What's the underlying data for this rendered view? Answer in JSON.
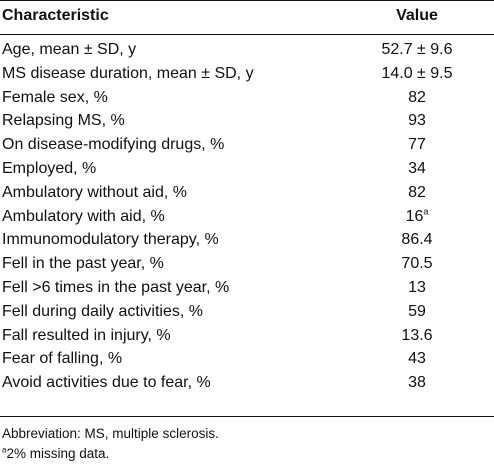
{
  "table": {
    "header": {
      "characteristic": "Characteristic",
      "value": "Value"
    },
    "rows": [
      {
        "label": "Age, mean ± SD, y",
        "value": "52.7 ± 9.6",
        "sup": ""
      },
      {
        "label": "MS disease duration, mean ± SD, y",
        "value": "14.0 ± 9.5",
        "sup": ""
      },
      {
        "label": "Female sex, %",
        "value": "82",
        "sup": ""
      },
      {
        "label": "Relapsing MS, %",
        "value": "93",
        "sup": ""
      },
      {
        "label": "On disease-modifying drugs, %",
        "value": "77",
        "sup": ""
      },
      {
        "label": "Employed, %",
        "value": "34",
        "sup": ""
      },
      {
        "label": "Ambulatory without aid, %",
        "value": "82",
        "sup": ""
      },
      {
        "label": "Ambulatory with aid, %",
        "value": "16",
        "sup": "a"
      },
      {
        "label": "Immunomodulatory therapy, %",
        "value": "86.4",
        "sup": ""
      },
      {
        "label": "Fell in the past year, %",
        "value": "70.5",
        "sup": ""
      },
      {
        "label": "Fell >6 times in the past year, %",
        "value": "13",
        "sup": ""
      },
      {
        "label": "Fell during daily activities, %",
        "value": "59",
        "sup": ""
      },
      {
        "label": "Fall resulted in injury, %",
        "value": "13.6",
        "sup": ""
      },
      {
        "label": "Fear of falling, %",
        "value": "43",
        "sup": ""
      },
      {
        "label": "Avoid activities due to fear, %",
        "value": "38",
        "sup": ""
      }
    ]
  },
  "notes": {
    "abbreviation": "Abbreviation: MS, multiple sclerosis.",
    "footnote_mark": "a",
    "footnote_text": "2% missing data."
  }
}
